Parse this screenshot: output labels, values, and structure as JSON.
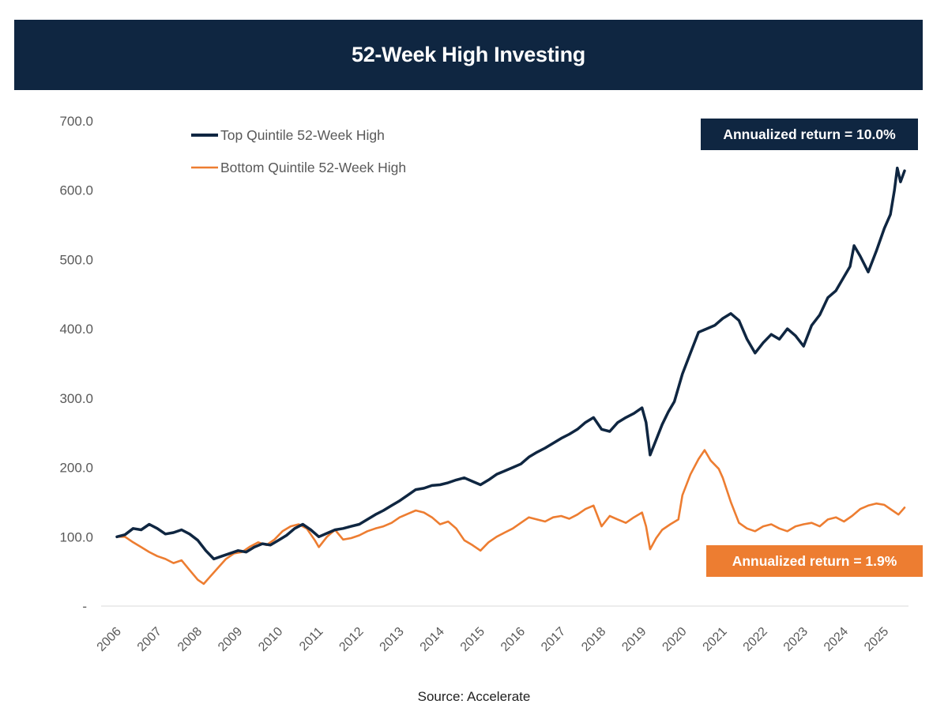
{
  "chart_data": {
    "type": "line",
    "title": "52-Week High Investing",
    "source": "Source: Accelerate",
    "x_tick_labels": [
      "2006",
      "2007",
      "2008",
      "2009",
      "2010",
      "2011",
      "2012",
      "2013",
      "2014",
      "2015",
      "2016",
      "2017",
      "2018",
      "2019",
      "2020",
      "2021",
      "2022",
      "2023",
      "2024",
      "2025"
    ],
    "y_tick_labels": [
      "-",
      "100.0",
      "200.0",
      "300.0",
      "400.0",
      "500.0",
      "600.0",
      "700.0"
    ],
    "y_ticks": [
      0,
      100,
      200,
      300,
      400,
      500,
      600,
      700
    ],
    "ylim": [
      0,
      700
    ],
    "xlim": [
      2006.0,
      2025.5
    ],
    "grid": false,
    "legend_position": "top-left",
    "series": [
      {
        "name": "Top Quintile 52-Week High",
        "color": "#0f2641",
        "annotation": "Annualized return = 10.0%",
        "points": [
          [
            2006.0,
            100
          ],
          [
            2006.2,
            103
          ],
          [
            2006.4,
            112
          ],
          [
            2006.6,
            110
          ],
          [
            2006.8,
            118
          ],
          [
            2007.0,
            112
          ],
          [
            2007.2,
            104
          ],
          [
            2007.4,
            106
          ],
          [
            2007.6,
            110
          ],
          [
            2007.8,
            104
          ],
          [
            2008.0,
            95
          ],
          [
            2008.2,
            80
          ],
          [
            2008.4,
            68
          ],
          [
            2008.6,
            72
          ],
          [
            2008.8,
            76
          ],
          [
            2009.0,
            80
          ],
          [
            2009.2,
            78
          ],
          [
            2009.4,
            85
          ],
          [
            2009.6,
            90
          ],
          [
            2009.8,
            88
          ],
          [
            2010.0,
            95
          ],
          [
            2010.2,
            102
          ],
          [
            2010.4,
            112
          ],
          [
            2010.6,
            118
          ],
          [
            2010.8,
            110
          ],
          [
            2011.0,
            100
          ],
          [
            2011.2,
            105
          ],
          [
            2011.4,
            110
          ],
          [
            2011.6,
            112
          ],
          [
            2011.8,
            115
          ],
          [
            2012.0,
            118
          ],
          [
            2012.2,
            125
          ],
          [
            2012.4,
            132
          ],
          [
            2012.6,
            138
          ],
          [
            2012.8,
            145
          ],
          [
            2013.0,
            152
          ],
          [
            2013.2,
            160
          ],
          [
            2013.4,
            168
          ],
          [
            2013.6,
            170
          ],
          [
            2013.8,
            174
          ],
          [
            2014.0,
            175
          ],
          [
            2014.2,
            178
          ],
          [
            2014.4,
            182
          ],
          [
            2014.6,
            185
          ],
          [
            2014.8,
            180
          ],
          [
            2015.0,
            175
          ],
          [
            2015.2,
            182
          ],
          [
            2015.4,
            190
          ],
          [
            2015.6,
            195
          ],
          [
            2015.8,
            200
          ],
          [
            2016.0,
            205
          ],
          [
            2016.2,
            215
          ],
          [
            2016.4,
            222
          ],
          [
            2016.6,
            228
          ],
          [
            2016.8,
            235
          ],
          [
            2017.0,
            242
          ],
          [
            2017.2,
            248
          ],
          [
            2017.4,
            255
          ],
          [
            2017.6,
            265
          ],
          [
            2017.8,
            272
          ],
          [
            2018.0,
            255
          ],
          [
            2018.2,
            252
          ],
          [
            2018.4,
            265
          ],
          [
            2018.6,
            272
          ],
          [
            2018.8,
            278
          ],
          [
            2019.0,
            286
          ],
          [
            2019.1,
            265
          ],
          [
            2019.2,
            218
          ],
          [
            2019.35,
            240
          ],
          [
            2019.5,
            262
          ],
          [
            2019.65,
            280
          ],
          [
            2019.8,
            295
          ],
          [
            2020.0,
            335
          ],
          [
            2020.2,
            365
          ],
          [
            2020.4,
            395
          ],
          [
            2020.6,
            400
          ],
          [
            2020.8,
            405
          ],
          [
            2021.0,
            415
          ],
          [
            2021.2,
            422
          ],
          [
            2021.4,
            412
          ],
          [
            2021.6,
            385
          ],
          [
            2021.8,
            365
          ],
          [
            2022.0,
            380
          ],
          [
            2022.2,
            392
          ],
          [
            2022.4,
            385
          ],
          [
            2022.6,
            400
          ],
          [
            2022.8,
            390
          ],
          [
            2023.0,
            375
          ],
          [
            2023.2,
            405
          ],
          [
            2023.4,
            420
          ],
          [
            2023.6,
            445
          ],
          [
            2023.8,
            455
          ],
          [
            2024.0,
            475
          ],
          [
            2024.15,
            490
          ],
          [
            2024.25,
            520
          ],
          [
            2024.4,
            505
          ],
          [
            2024.6,
            482
          ],
          [
            2024.8,
            512
          ],
          [
            2025.0,
            545
          ],
          [
            2025.15,
            565
          ],
          [
            2025.25,
            600
          ],
          [
            2025.32,
            632
          ],
          [
            2025.4,
            612
          ],
          [
            2025.5,
            628
          ]
        ]
      },
      {
        "name": "Bottom Quintile 52-Week High",
        "color": "#ed7d31",
        "annotation": "Annualized return = 1.9%",
        "points": [
          [
            2006.0,
            100
          ],
          [
            2006.2,
            100
          ],
          [
            2006.4,
            92
          ],
          [
            2006.6,
            85
          ],
          [
            2006.8,
            78
          ],
          [
            2007.0,
            72
          ],
          [
            2007.2,
            68
          ],
          [
            2007.4,
            62
          ],
          [
            2007.6,
            66
          ],
          [
            2007.8,
            52
          ],
          [
            2008.0,
            38
          ],
          [
            2008.15,
            32
          ],
          [
            2008.3,
            42
          ],
          [
            2008.5,
            55
          ],
          [
            2008.7,
            68
          ],
          [
            2008.9,
            76
          ],
          [
            2009.1,
            78
          ],
          [
            2009.3,
            86
          ],
          [
            2009.5,
            92
          ],
          [
            2009.7,
            88
          ],
          [
            2009.9,
            96
          ],
          [
            2010.1,
            108
          ],
          [
            2010.3,
            115
          ],
          [
            2010.5,
            118
          ],
          [
            2010.7,
            112
          ],
          [
            2010.9,
            95
          ],
          [
            2011.0,
            85
          ],
          [
            2011.2,
            100
          ],
          [
            2011.4,
            110
          ],
          [
            2011.6,
            96
          ],
          [
            2011.8,
            98
          ],
          [
            2012.0,
            102
          ],
          [
            2012.2,
            108
          ],
          [
            2012.4,
            112
          ],
          [
            2012.6,
            115
          ],
          [
            2012.8,
            120
          ],
          [
            2013.0,
            128
          ],
          [
            2013.2,
            133
          ],
          [
            2013.4,
            138
          ],
          [
            2013.6,
            135
          ],
          [
            2013.8,
            128
          ],
          [
            2014.0,
            118
          ],
          [
            2014.2,
            122
          ],
          [
            2014.4,
            112
          ],
          [
            2014.6,
            95
          ],
          [
            2014.8,
            88
          ],
          [
            2015.0,
            80
          ],
          [
            2015.2,
            92
          ],
          [
            2015.4,
            100
          ],
          [
            2015.6,
            106
          ],
          [
            2015.8,
            112
          ],
          [
            2016.0,
            120
          ],
          [
            2016.2,
            128
          ],
          [
            2016.4,
            125
          ],
          [
            2016.6,
            122
          ],
          [
            2016.8,
            128
          ],
          [
            2017.0,
            130
          ],
          [
            2017.2,
            126
          ],
          [
            2017.4,
            132
          ],
          [
            2017.6,
            140
          ],
          [
            2017.8,
            145
          ],
          [
            2018.0,
            115
          ],
          [
            2018.2,
            130
          ],
          [
            2018.4,
            125
          ],
          [
            2018.6,
            120
          ],
          [
            2018.8,
            128
          ],
          [
            2019.0,
            135
          ],
          [
            2019.1,
            115
          ],
          [
            2019.2,
            82
          ],
          [
            2019.35,
            98
          ],
          [
            2019.5,
            110
          ],
          [
            2019.7,
            118
          ],
          [
            2019.9,
            125
          ],
          [
            2020.0,
            160
          ],
          [
            2020.2,
            190
          ],
          [
            2020.4,
            212
          ],
          [
            2020.55,
            225
          ],
          [
            2020.7,
            210
          ],
          [
            2020.9,
            198
          ],
          [
            2021.0,
            185
          ],
          [
            2021.2,
            150
          ],
          [
            2021.4,
            120
          ],
          [
            2021.6,
            112
          ],
          [
            2021.8,
            108
          ],
          [
            2022.0,
            115
          ],
          [
            2022.2,
            118
          ],
          [
            2022.4,
            112
          ],
          [
            2022.6,
            108
          ],
          [
            2022.8,
            115
          ],
          [
            2023.0,
            118
          ],
          [
            2023.2,
            120
          ],
          [
            2023.4,
            115
          ],
          [
            2023.6,
            125
          ],
          [
            2023.8,
            128
          ],
          [
            2024.0,
            122
          ],
          [
            2024.2,
            130
          ],
          [
            2024.4,
            140
          ],
          [
            2024.6,
            145
          ],
          [
            2024.8,
            148
          ],
          [
            2025.0,
            146
          ],
          [
            2025.2,
            138
          ],
          [
            2025.35,
            132
          ],
          [
            2025.5,
            142
          ]
        ]
      }
    ]
  }
}
